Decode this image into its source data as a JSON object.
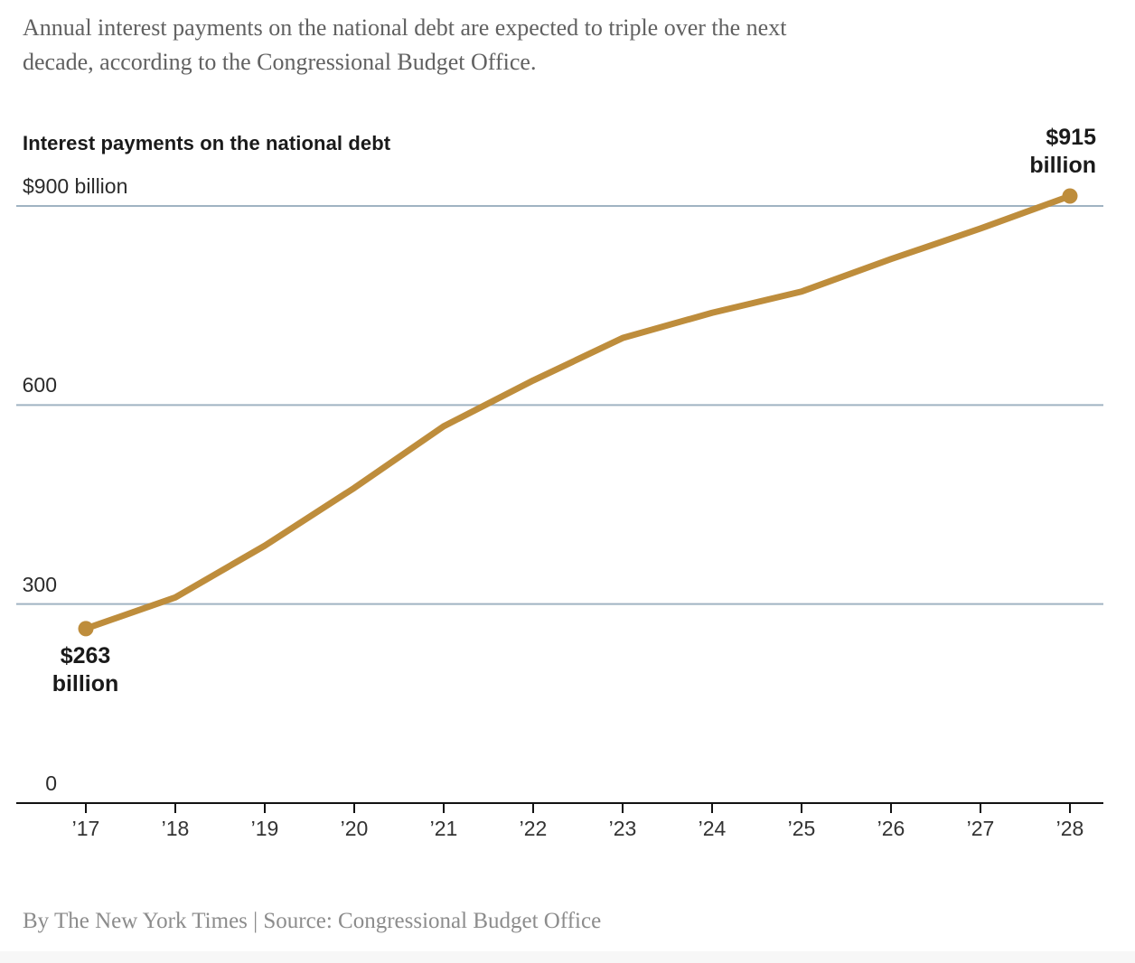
{
  "header": {
    "headline_lines": [
      "Annual interest payments on the national debt are expected to triple over the next",
      "decade, according to the Congressional Budget Office."
    ]
  },
  "chart_data": {
    "type": "line",
    "title": "Interest payments on the national debt",
    "years": [
      2017,
      2018,
      2019,
      2020,
      2021,
      2022,
      2023,
      2024,
      2025,
      2026,
      2027,
      2028
    ],
    "x_tick_labels": [
      "’17",
      "’18",
      "’19",
      "’20",
      "’21",
      "’22",
      "’23",
      "’24",
      "’25",
      "’26",
      "’27",
      "’28"
    ],
    "series": [
      {
        "name": "Interest payments on the national debt, billions of dollars",
        "values": [
          263,
          310,
          388,
          475,
          568,
          637,
          701,
          739,
          771,
          820,
          866,
          915
        ]
      }
    ],
    "ylim": [
      0,
      940
    ],
    "y_ticks": [
      {
        "value": 0,
        "label": "0",
        "align": "right"
      },
      {
        "value": 300,
        "label": "300",
        "align": "right"
      },
      {
        "value": 600,
        "label": "600",
        "align": "right"
      },
      {
        "value": 900,
        "label": "$900 billion",
        "align": "left"
      }
    ],
    "grid": "horizontal gridlines at 300, 600, 900; baseline axis at 0",
    "legend": "none",
    "annotations": {
      "start": {
        "year": 2017,
        "value": 263,
        "lines": [
          "$263",
          "billion"
        ]
      },
      "end": {
        "year": 2028,
        "value": 915,
        "lines": [
          "$915",
          "billion"
        ]
      }
    },
    "colors": {
      "line": "#BE8D3C",
      "gridline": "#A0B3C2",
      "axis": "#121212"
    }
  },
  "footer": {
    "byline": "By The New York Times | Source: Congressional Budget Office"
  }
}
